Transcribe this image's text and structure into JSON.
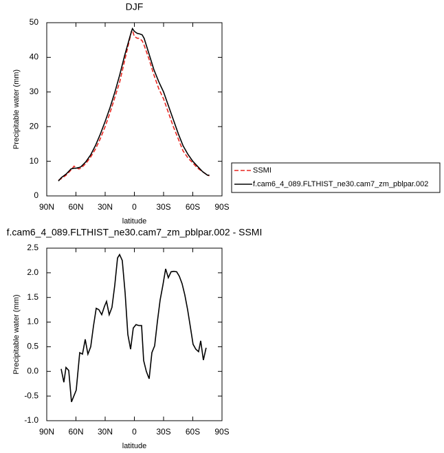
{
  "chart_data": [
    {
      "type": "line",
      "title": "DJF",
      "xlabel": "latitude",
      "ylabel": "Precipitable water (mm)",
      "xlim": [
        90,
        -90
      ],
      "ylim": [
        0,
        50
      ],
      "xticks": [
        {
          "value": 90,
          "label": "90N"
        },
        {
          "value": 60,
          "label": "60N"
        },
        {
          "value": 30,
          "label": "30N"
        },
        0,
        {
          "value": -30,
          "label": "30S"
        },
        {
          "value": -60,
          "label": "60S"
        },
        {
          "value": -90,
          "label": "90S"
        }
      ],
      "yticks": [
        0,
        10,
        20,
        30,
        40,
        50
      ],
      "legend": "right",
      "x": [
        78,
        75,
        70,
        65,
        62,
        60,
        57,
        55,
        50,
        45,
        40,
        35,
        30,
        25,
        20,
        15,
        10,
        5,
        3,
        2,
        0,
        -3,
        -5,
        -8,
        -10,
        -15,
        -20,
        -25,
        -30,
        -35,
        -40,
        -45,
        -50,
        -55,
        -60,
        -65,
        -70,
        -75,
        -77
      ],
      "series": [
        {
          "name": "SSMI",
          "color": "#e8251f",
          "linestyle": "dashed",
          "values": [
            4.5,
            5.0,
            6.0,
            7.5,
            8.6,
            8.2,
            7.8,
            8.0,
            9.3,
            11.2,
            13.5,
            16.5,
            20.0,
            24.0,
            28.5,
            33.0,
            39.0,
            45.0,
            47.5,
            47.8,
            46.0,
            45.5,
            45.5,
            44.8,
            43.5,
            39.5,
            35.0,
            31.0,
            28.0,
            24.0,
            20.0,
            16.5,
            13.0,
            11.0,
            9.5,
            8.0,
            7.0,
            6.0,
            5.8
          ]
        },
        {
          "name": "f.cam6_4_089.FLTHIST_ne30.cam7_zm_pblpar.002",
          "color": "#000000",
          "linestyle": "solid",
          "values": [
            4.3,
            5.3,
            6.3,
            7.8,
            8.0,
            8.0,
            8.2,
            8.4,
            9.8,
            11.8,
            14.5,
            17.8,
            21.5,
            25.5,
            30.0,
            35.0,
            40.5,
            45.5,
            47.5,
            48.3,
            47.5,
            46.9,
            46.8,
            46.5,
            45.5,
            41.0,
            36.5,
            33.0,
            30.0,
            26.0,
            22.0,
            18.0,
            14.5,
            12.0,
            10.0,
            8.5,
            7.0,
            6.0,
            6.0
          ]
        }
      ]
    },
    {
      "type": "line",
      "title": "f.cam6_4_089.FLTHIST_ne30.cam7_zm_pblpar.002 - SSMI",
      "xlabel": "latitude",
      "ylabel": "Precipitable water (mm)",
      "xlim": [
        90,
        -90
      ],
      "ylim": [
        -1,
        2.5
      ],
      "xticks": [
        {
          "value": 90,
          "label": "90N"
        },
        {
          "value": 60,
          "label": "60N"
        },
        {
          "value": 30,
          "label": "30N"
        },
        0,
        {
          "value": -30,
          "label": "30S"
        },
        {
          "value": -60,
          "label": "60S"
        },
        {
          "value": -90,
          "label": "90S"
        }
      ],
      "yticks": [
        {
          "value": -1,
          "label": "-1.0"
        },
        -0.5,
        {
          "value": 0,
          "label": "0.0"
        },
        0.5,
        {
          "value": 1,
          "label": "1.0"
        },
        1.5,
        {
          "value": 2,
          "label": "2.0"
        },
        2.5
      ],
      "x": [
        75.2,
        72.4,
        70.2,
        67.4,
        64.6,
        59.7,
        56.1,
        53.3,
        50.5,
        47.7,
        44.8,
        42.0,
        39.2,
        36.4,
        33.5,
        30.7,
        28.6,
        25.8,
        23.0,
        20.1,
        17.3,
        15.2,
        12.4,
        9.5,
        6.7,
        3.9,
        1.1,
        -1.7,
        -4.6,
        -7.4,
        -9.5,
        -12.3,
        -15.2,
        -18.0,
        -20.8,
        -23.6,
        -26.5,
        -29.3,
        -32.1,
        -34.9,
        -37.7,
        -40.6,
        -43.4,
        -46.2,
        -49.0,
        -51.8,
        -54.7,
        -57.5,
        -60.3,
        -63.1,
        -65.9,
        -68.1,
        -70.9,
        -73.7
      ],
      "series": [
        {
          "name": "f.cam6_4_089.FLTHIST_ne30.cam7_zm_pblpar.002 - SSMI",
          "color": "#000000",
          "linestyle": "solid",
          "values": [
            0.05,
            -0.22,
            0.08,
            0.02,
            -0.62,
            -0.38,
            0.38,
            0.35,
            0.65,
            0.35,
            0.5,
            0.92,
            1.28,
            1.25,
            1.15,
            1.32,
            1.42,
            1.15,
            1.3,
            1.75,
            2.3,
            2.37,
            2.25,
            1.6,
            0.75,
            0.45,
            0.88,
            0.95,
            0.93,
            0.93,
            0.22,
            0.0,
            -0.15,
            0.38,
            0.52,
            1.0,
            1.45,
            1.75,
            2.08,
            1.9,
            2.02,
            2.03,
            2.02,
            1.93,
            1.78,
            1.55,
            1.25,
            0.9,
            0.55,
            0.45,
            0.4,
            0.62,
            0.23,
            0.48
          ]
        }
      ]
    }
  ]
}
